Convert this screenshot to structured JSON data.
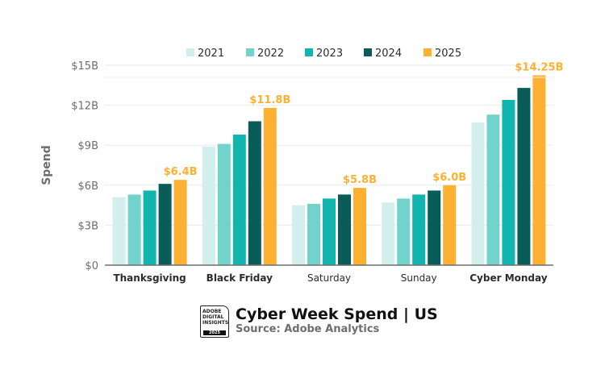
{
  "chart_data": {
    "type": "bar",
    "title": "Cyber Week Spend | US",
    "subtitle": "Source: Adobe Analytics",
    "ylabel": "Spend",
    "xlabel": "",
    "ylim": [
      0,
      15
    ],
    "yticks": [
      "$0",
      "$3B",
      "$6B",
      "$9B",
      "$12B",
      "$15B"
    ],
    "ytick_values": [
      0,
      3,
      6,
      9,
      12,
      15
    ],
    "grid": true,
    "legend_placement": "top",
    "categories": [
      "Thanksgiving",
      "Black Friday",
      "Saturday",
      "Sunday",
      "Cyber Monday"
    ],
    "bold_categories": [
      "Thanksgiving",
      "Black Friday",
      "Cyber Monday"
    ],
    "series": [
      {
        "name": "2021",
        "color": "#d2efee",
        "values": [
          5.1,
          8.9,
          4.5,
          4.7,
          10.7
        ]
      },
      {
        "name": "2022",
        "color": "#72d3cd",
        "values": [
          5.3,
          9.1,
          4.6,
          5.0,
          11.3
        ]
      },
      {
        "name": "2023",
        "color": "#12b5ad",
        "values": [
          5.6,
          9.8,
          5.0,
          5.3,
          12.4
        ]
      },
      {
        "name": "2024",
        "color": "#095c58",
        "values": [
          6.1,
          10.8,
          5.3,
          5.6,
          13.3
        ]
      },
      {
        "name": "2025",
        "color": "#fcb133",
        "values": [
          6.4,
          11.8,
          5.8,
          6.0,
          14.25
        ]
      }
    ],
    "data_labels": [
      "$6.4B",
      "$11.8B",
      "$5.8B",
      "$6.0B",
      "$14.25B"
    ]
  },
  "footer": {
    "logo_text": [
      "ADOBE",
      "DIGITAL",
      "INSIGHTS"
    ],
    "logo_year": "2025"
  }
}
